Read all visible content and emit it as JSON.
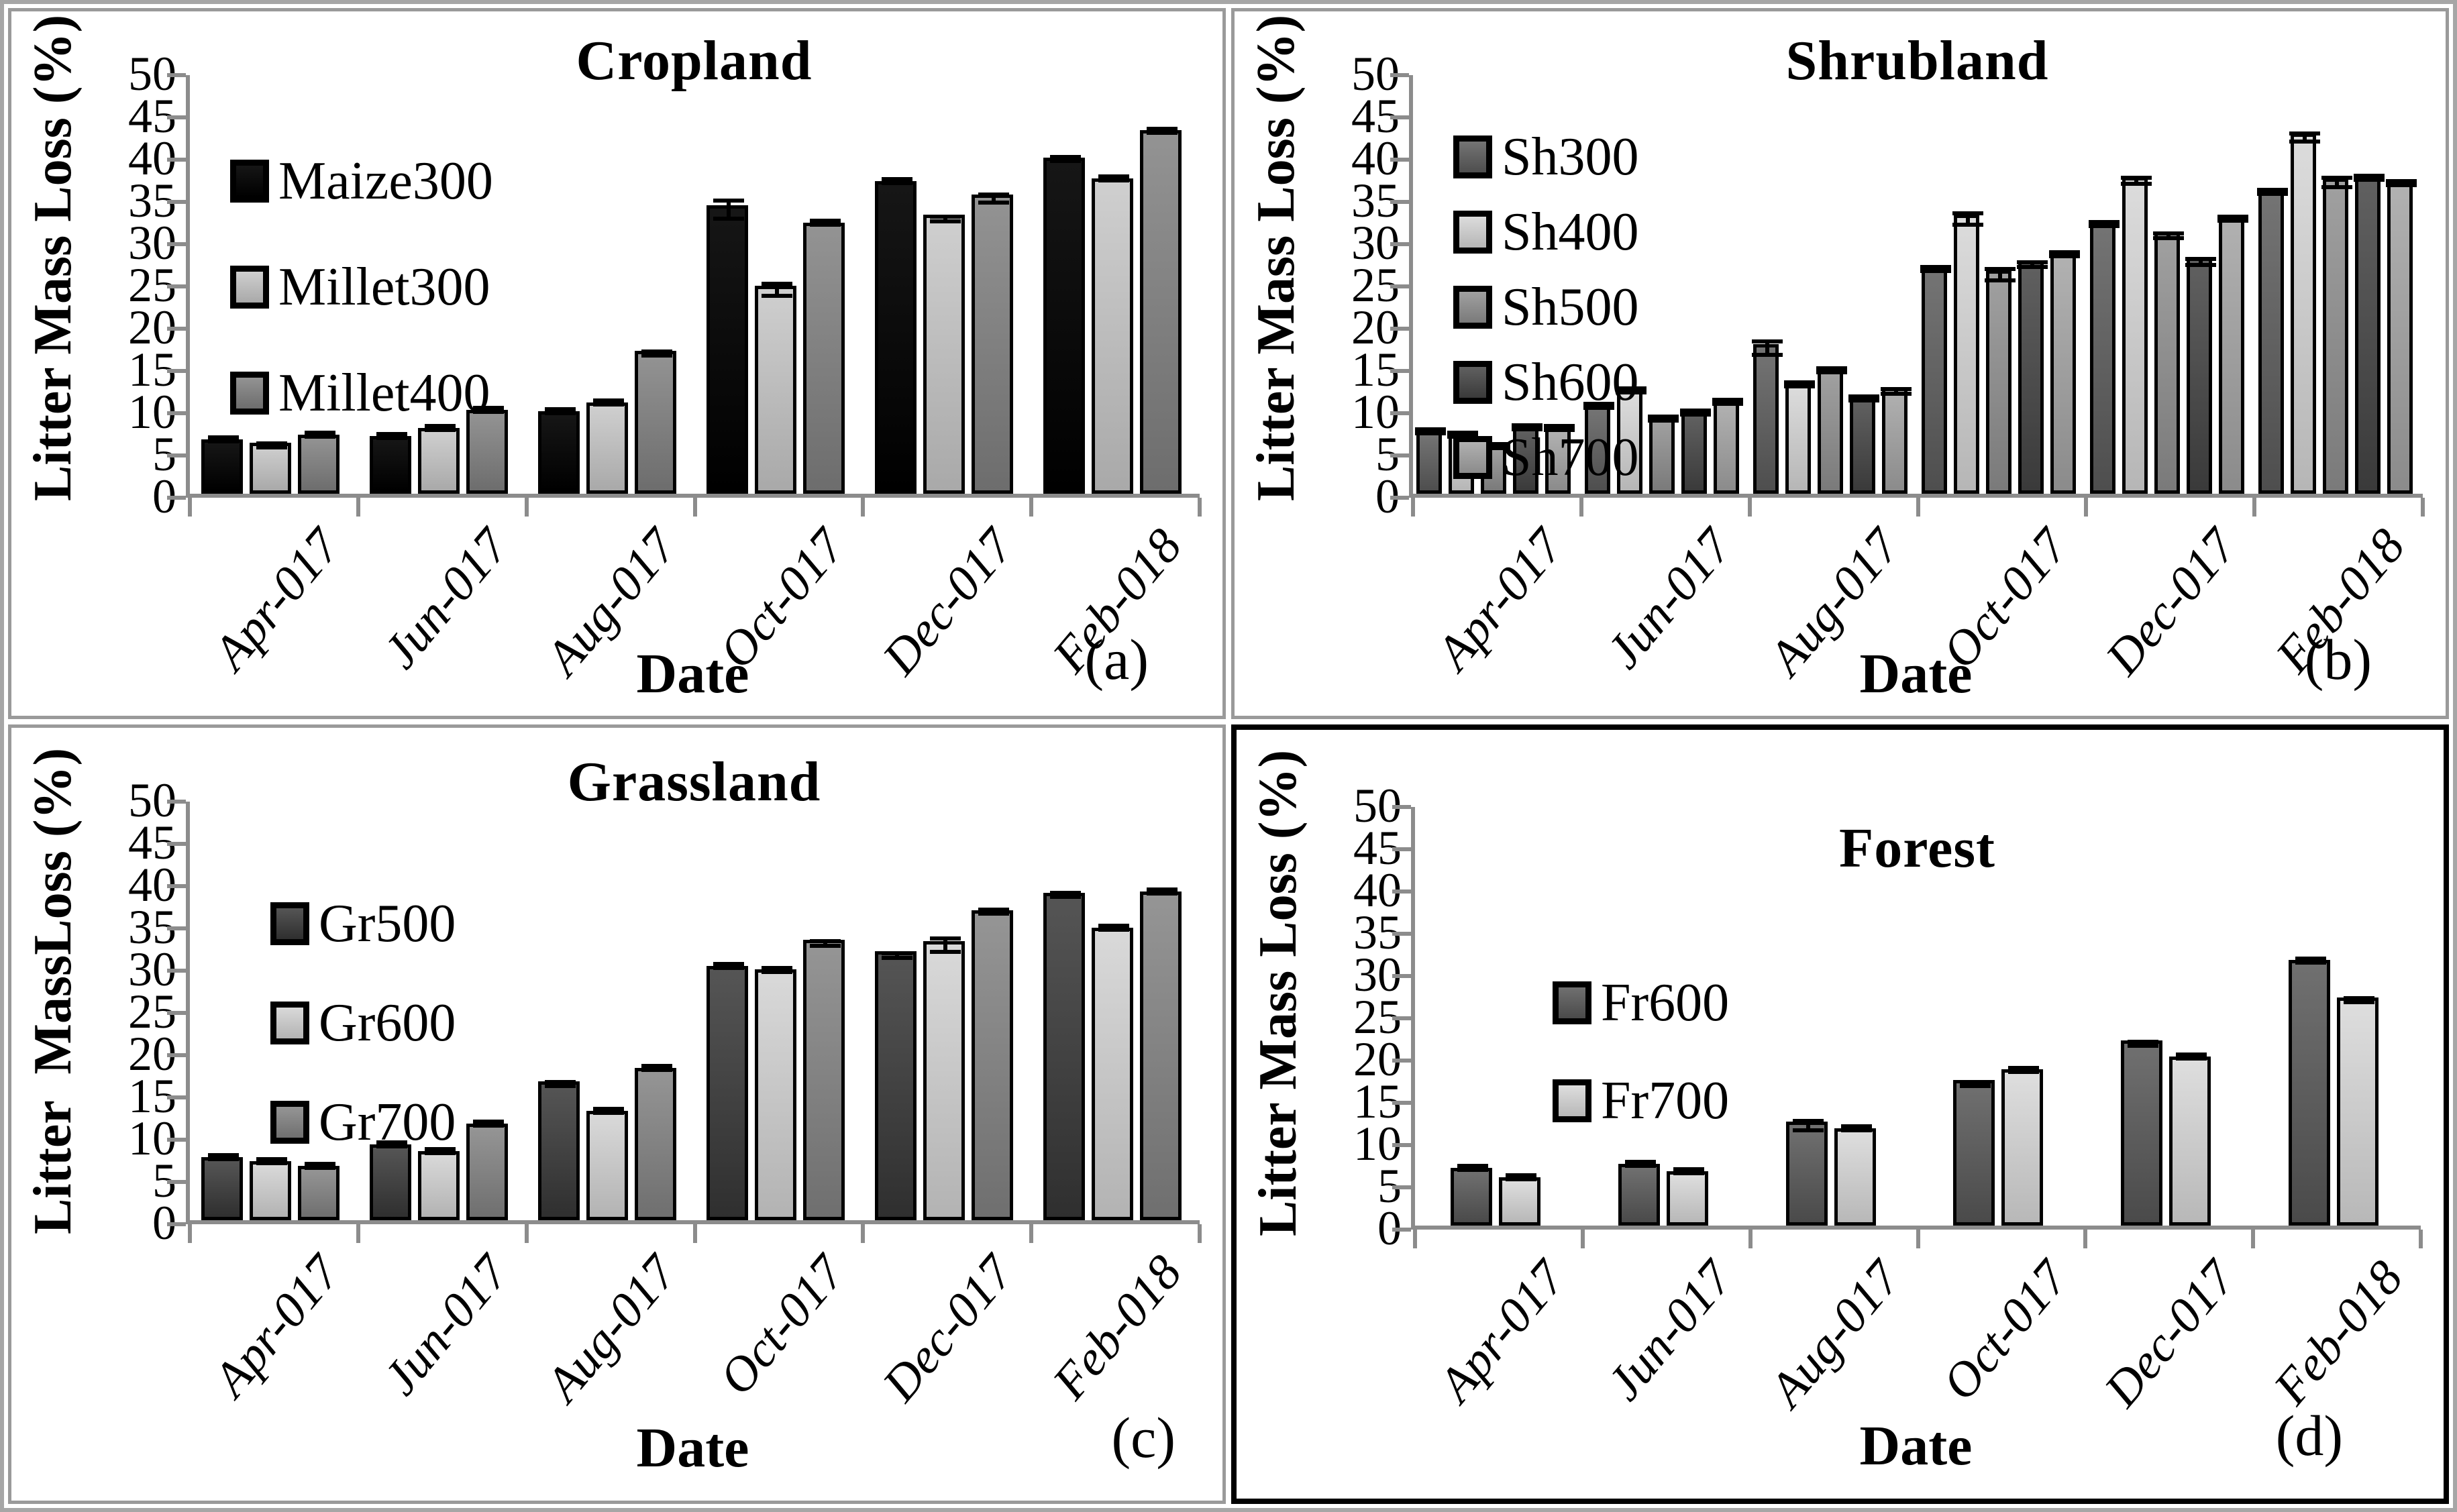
{
  "figure": {
    "x_label": "Date",
    "y_axis": {
      "min": 0,
      "max": 50,
      "step": 5
    },
    "categories": [
      "Apr-017",
      "Jun-017",
      "Aug-017",
      "Oct-017",
      "Dec-017",
      "Feb-018"
    ],
    "axis_color": "#8c8c8c",
    "error_bar_color": "#000000"
  },
  "chart_data": [
    {
      "type": "bar",
      "title": "Cropland",
      "panel_letter": "(a)",
      "xlabel": "Date",
      "ylabel": "Litter Mass Loss (%)",
      "ylim": [
        0,
        50
      ],
      "ytick_step": 5,
      "grid": false,
      "legend_position": "upper-left",
      "categories": [
        "Apr-017",
        "Jun-017",
        "Aug-017",
        "Oct-017",
        "Dec-017",
        "Feb-018"
      ],
      "series": [
        {
          "name": "Maize300",
          "color": "#000000",
          "values": [
            6.4,
            6.8,
            9.8,
            34.1,
            37.0,
            39.8
          ],
          "errors": [
            0.15,
            0.15,
            0.4,
            1.8,
            0.3,
            0.7
          ]
        },
        {
          "name": "Millet300",
          "color": "#b9b9b9",
          "values": [
            6.0,
            7.8,
            10.8,
            24.6,
            33.0,
            37.3
          ],
          "errors": [
            0.8,
            0.3,
            0.5,
            1.4,
            1.0,
            0.4
          ]
        },
        {
          "name": "Millet400",
          "color": "#7d7d7d",
          "values": [
            7.0,
            9.9,
            16.9,
            32.1,
            35.4,
            43.0
          ],
          "errors": [
            0.3,
            0.2,
            0.8,
            0.3,
            1.2,
            0.5
          ]
        }
      ]
    },
    {
      "type": "bar",
      "title": "Shrubland",
      "panel_letter": "(b)",
      "xlabel": "Date",
      "ylabel": "Litter Mass Loss (%)",
      "ylim": [
        0,
        50
      ],
      "ytick_step": 5,
      "grid": false,
      "legend_position": "upper-left",
      "categories": [
        "Apr-017",
        "Jun-017",
        "Aug-017",
        "Oct-017",
        "Dec-017",
        "Feb-018"
      ],
      "series": [
        {
          "name": "Sh300",
          "color": "#5e5e5e",
          "values": [
            7.4,
            10.4,
            17.7,
            26.6,
            32.3,
            35.9
          ],
          "errors": [
            0.15,
            0.2,
            1.5,
            0.3,
            0.9,
            0.7
          ]
        },
        {
          "name": "Sh400",
          "color": "#c6c6c6",
          "values": [
            7.0,
            12.2,
            12.9,
            33.0,
            37.5,
            42.6
          ],
          "errors": [
            0.15,
            0.15,
            0.4,
            1.4,
            1.1,
            1.2
          ]
        },
        {
          "name": "Sh500",
          "color": "#8a8a8a",
          "values": [
            5.6,
            8.9,
            14.6,
            26.4,
            31.0,
            37.3
          ],
          "errors": [
            0.15,
            0.4,
            0.5,
            1.4,
            1.0,
            1.3
          ]
        },
        {
          "name": "Sh600",
          "color": "#4a4a4a",
          "values": [
            7.9,
            9.6,
            11.3,
            27.6,
            27.9,
            37.4
          ],
          "errors": [
            0.5,
            0.5,
            0.4,
            1.0,
            1.1,
            0.4
          ]
        },
        {
          "name": "Sh700",
          "color": "#9b9b9b",
          "values": [
            7.8,
            11.0,
            12.6,
            28.3,
            33.0,
            36.8
          ],
          "errors": [
            0.15,
            0.6,
            1.0,
            0.3,
            0.9,
            0.5
          ]
        }
      ]
    },
    {
      "type": "bar",
      "title": "Grassland",
      "panel_letter": "(c)",
      "xlabel": "Date",
      "ylabel": "Litter  MassLoss (%)",
      "ylim": [
        0,
        50
      ],
      "ytick_step": 5,
      "grid": false,
      "legend_position": "upper-left",
      "categories": [
        "Apr-017",
        "Jun-017",
        "Aug-017",
        "Oct-017",
        "Dec-017",
        "Feb-018"
      ],
      "series": [
        {
          "name": "Gr500",
          "color": "#3f3f3f",
          "values": [
            7.5,
            9.0,
            16.4,
            30.1,
            31.8,
            38.7
          ],
          "errors": [
            0.3,
            0.4,
            0.8,
            0.3,
            1.0,
            0.7
          ]
        },
        {
          "name": "Gr600",
          "color": "#c3c3c3",
          "values": [
            7.0,
            8.2,
            12.9,
            29.7,
            33.0,
            34.6
          ],
          "errors": [
            0.15,
            0.15,
            0.3,
            0.6,
            1.5,
            0.4
          ]
        },
        {
          "name": "Gr700",
          "color": "#7f7f7f",
          "values": [
            6.4,
            11.4,
            18.0,
            33.2,
            36.7,
            38.9
          ],
          "errors": [
            0.3,
            0.15,
            0.15,
            1.0,
            0.7,
            0.4
          ]
        }
      ]
    },
    {
      "type": "bar",
      "title": "Forest",
      "panel_letter": "(d)",
      "xlabel": "Date",
      "ylabel": "Litter Mass Loss (%)",
      "ylim": [
        0,
        50
      ],
      "ytick_step": 5,
      "grid": false,
      "legend_position": "upper-left",
      "categories": [
        "Apr-017",
        "Jun-017",
        "Aug-017",
        "Oct-017",
        "Dec-017",
        "Feb-018"
      ],
      "series": [
        {
          "name": "Fr600",
          "color": "#5a5a5a",
          "values": [
            6.8,
            7.3,
            12.3,
            17.2,
            21.9,
            31.4
          ],
          "errors": [
            0.1,
            0.15,
            1.3,
            0.9,
            0.9,
            0.5
          ]
        },
        {
          "name": "Fr700",
          "color": "#c8c8c8",
          "values": [
            5.7,
            6.4,
            11.5,
            18.5,
            20.0,
            27.0
          ],
          "errors": [
            0.4,
            0.1,
            0.4,
            0.6,
            0.2,
            0.8
          ]
        }
      ]
    }
  ]
}
